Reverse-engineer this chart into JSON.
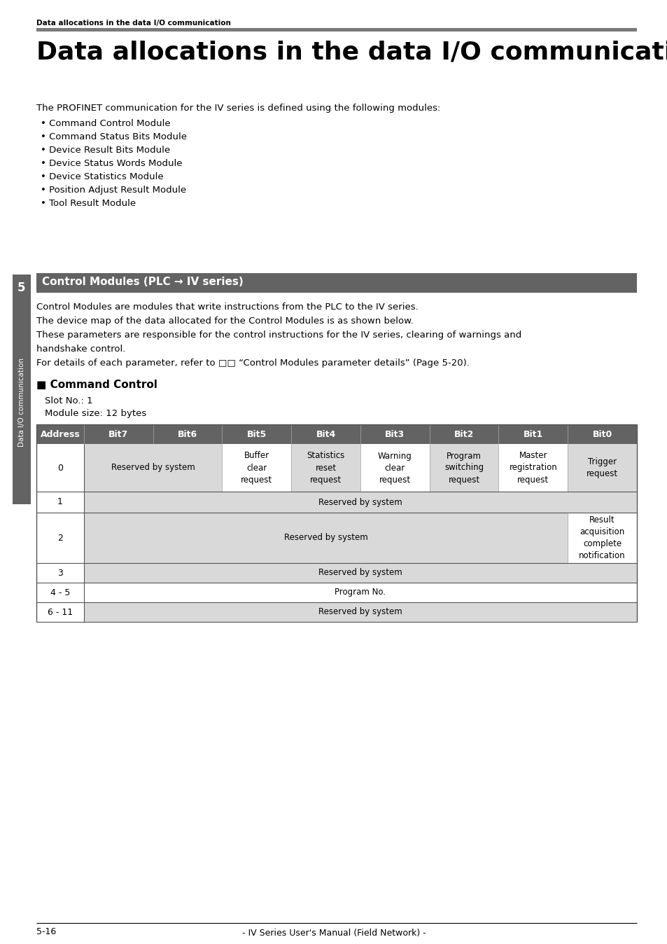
{
  "page_bg": "#ffffff",
  "header_breadcrumb": "Data allocations in the data I/O communication",
  "main_title": "Data allocations in the data I/O communication",
  "body_intro": "The PROFINET communication for the IV series is defined using the following modules:",
  "bullet_items": [
    "• Command Control Module",
    "• Command Status Bits Module",
    "• Device Result Bits Module",
    "• Device Status Words Module",
    "• Device Statistics Module",
    "• Position Adjust Result Module",
    "• Tool Result Module"
  ],
  "section_banner_text": "Control Modules (PLC → IV series)",
  "section_banner_bg": "#636363",
  "section_body_lines": [
    "Control Modules are modules that write instructions from the PLC to the IV series.",
    "The device map of the data allocated for the Control Modules is as shown below.",
    "These parameters are responsible for the control instructions for the IV series, clearing of warnings and",
    "handshake control.",
    "For details of each parameter, refer to □□ “Control Modules parameter details” (Page 5-20)."
  ],
  "subsection_title": "■ Command Control",
  "slot_no": "Slot No.: 1",
  "module_size": "Module size: 12 bytes",
  "table_header": [
    "Address",
    "Bit7",
    "Bit6",
    "Bit5",
    "Bit4",
    "Bit3",
    "Bit2",
    "Bit1",
    "Bit0"
  ],
  "table_header_bg": "#636363",
  "side_tab_number": "5",
  "side_tab_label": "Data I/O communication",
  "side_tab_bg": "#636363",
  "footer_left": "5-16",
  "footer_center": "- IV Series User's Manual (Field Network) -"
}
